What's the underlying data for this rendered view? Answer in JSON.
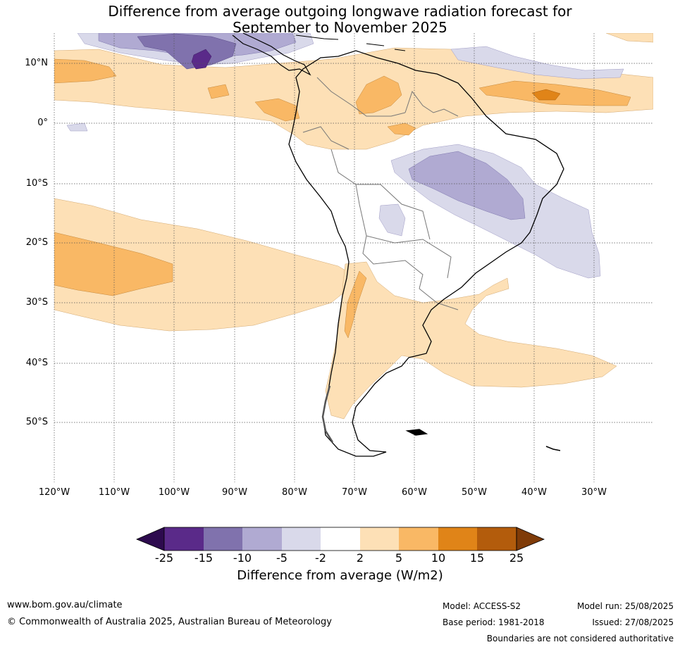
{
  "title": {
    "line1": "Difference from average outgoing longwave radiation forecast for",
    "line2": "September to November 2025"
  },
  "map": {
    "region": "South America",
    "lat_labels": [
      "10°N",
      "0°",
      "10°S",
      "20°S",
      "30°S",
      "40°S",
      "50°S"
    ],
    "lon_labels": [
      "120°W",
      "110°W",
      "100°W",
      "90°W",
      "80°W",
      "70°W",
      "60°W",
      "50°W",
      "40°W",
      "30°W"
    ],
    "gridlines": "dotted"
  },
  "colorbar": {
    "ticks": [
      "-25",
      "-15",
      "-10",
      "-5",
      "-2",
      "2",
      "5",
      "10",
      "15",
      "25"
    ],
    "label": "Difference from average (W/m2)",
    "colors": {
      "below_-25": "#2d0a4e",
      "-25_to_-15": "#5a2a89",
      "-15_to_-10": "#8072ad",
      "-10_to_-5": "#b0aad2",
      "-5_to_-2": "#d9d9ea",
      "-2_to_2": "#ffffff",
      "2_to_5": "#fde0b6",
      "5_to_10": "#f9b865",
      "10_to_15": "#e08418",
      "15_to_25": "#b35c0c",
      "above_25": "#7f3b08"
    }
  },
  "footer": {
    "website": "www.bom.gov.au/climate",
    "copyright": "© Commonwealth of Australia 2025, Australian Bureau of Meteorology",
    "model": "Model: ACCESS-S2",
    "base_period": "Base period: 1981-2018",
    "model_run": "Model run: 25/08/2025",
    "issued": "Issued: 27/08/2025",
    "disclaimer": "Boundaries are not considered authoritative"
  }
}
